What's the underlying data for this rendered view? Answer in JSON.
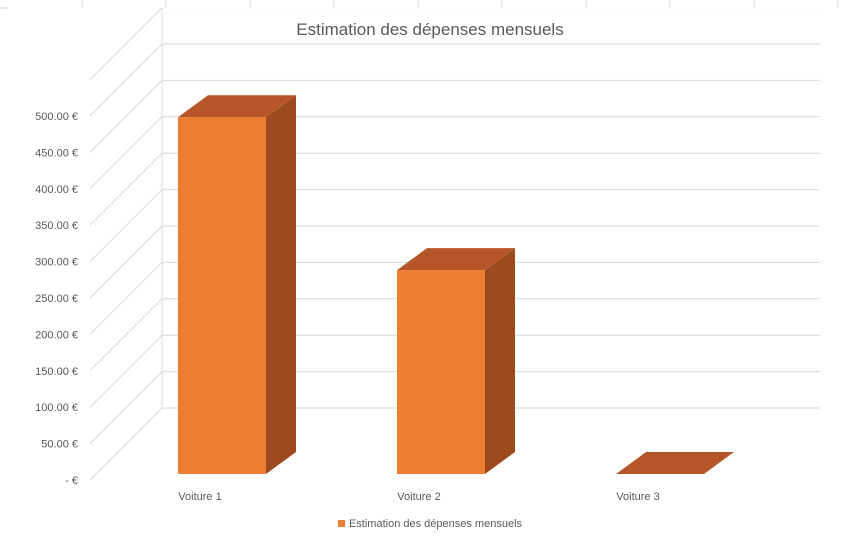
{
  "chart_data": {
    "type": "bar",
    "title": "Estimation des dépenses mensuels",
    "categories": [
      "Voiture 1",
      "Voiture 2",
      "Voiture 3"
    ],
    "series": [
      {
        "name": "Estimation des dépenses mensuels",
        "values": [
          490,
          280,
          0
        ],
        "color": "#ED7D31"
      }
    ],
    "ylim": [
      0,
      500
    ],
    "yticks": [
      0,
      50,
      100,
      150,
      200,
      250,
      300,
      350,
      400,
      450,
      500
    ],
    "ytick_labels": [
      "-   €",
      "50.00 €",
      "100.00 €",
      "150.00 €",
      "200.00 €",
      "250.00 €",
      "300.00 €",
      "350.00 €",
      "400.00 €",
      "450.00 €",
      "500.00 €"
    ],
    "grid": true,
    "legend_position": "bottom",
    "style": "3d-column"
  }
}
